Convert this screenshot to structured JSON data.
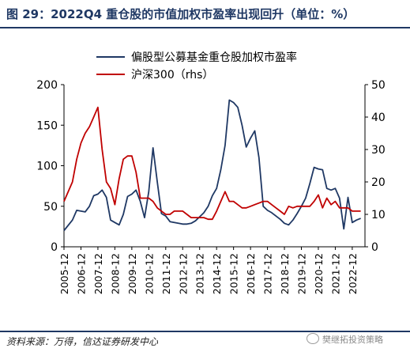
{
  "header": {
    "title": "图 29：2022Q4 重仓股的市值加权市盈率出现回升（单位：%）"
  },
  "footer": {
    "source": "资料来源：万得，信达证券研发中心",
    "watermark": "樊继拓投资策略"
  },
  "colors": {
    "series_pe": "#1f3864",
    "series_hs300": "#c00000",
    "title": "#1f3864",
    "axis": "#000000"
  },
  "chart_data": {
    "type": "line",
    "title": "",
    "xlabel": "",
    "ylabel": "",
    "legend_position": "top",
    "grid": false,
    "x_tick_labels": [
      "2005-12",
      "2006-12",
      "2007-12",
      "2008-12",
      "2009-12",
      "2010-12",
      "2011-12",
      "2012-12",
      "2013-12",
      "2014-12",
      "2015-12",
      "2016-12",
      "2017-12",
      "2018-12",
      "2019-12",
      "2020-12",
      "2021-12",
      "2022-12"
    ],
    "x_range": [
      2005.0,
      2022.75
    ],
    "y_left": {
      "ticks": [
        0,
        50,
        100,
        150,
        200
      ],
      "range": [
        0,
        200
      ]
    },
    "y_right": {
      "ticks": [
        0,
        10,
        20,
        30,
        40,
        50
      ],
      "range": [
        0,
        50
      ]
    },
    "series": [
      {
        "name": "偏股型公募基金重仓股加权市盈率",
        "axis": "left",
        "color": "#1f3864",
        "x": [
          2005.0,
          2005.5,
          2005.75,
          2006.0,
          2006.25,
          2006.5,
          2006.75,
          2007.0,
          2007.25,
          2007.5,
          2007.75,
          2008.0,
          2008.25,
          2008.5,
          2008.75,
          2009.0,
          2009.25,
          2009.5,
          2009.75,
          2010.0,
          2010.25,
          2010.5,
          2010.75,
          2011.0,
          2011.25,
          2011.5,
          2011.75,
          2012.0,
          2012.25,
          2012.5,
          2012.75,
          2013.0,
          2013.25,
          2013.5,
          2013.75,
          2014.0,
          2014.25,
          2014.5,
          2014.75,
          2015.0,
          2015.25,
          2015.5,
          2015.75,
          2016.0,
          2016.25,
          2016.5,
          2016.75,
          2017.0,
          2017.25,
          2017.5,
          2017.75,
          2018.0,
          2018.25,
          2018.5,
          2018.75,
          2019.0,
          2019.25,
          2019.5,
          2019.75,
          2020.0,
          2020.25,
          2020.5,
          2020.75,
          2021.0,
          2021.25,
          2021.5,
          2021.75,
          2022.0,
          2022.25,
          2022.5
        ],
        "y": [
          20,
          33,
          45,
          44,
          43,
          50,
          63,
          65,
          70,
          61,
          33,
          30,
          27,
          40,
          62,
          65,
          70,
          56,
          36,
          68,
          122,
          80,
          41,
          38,
          31,
          30,
          29,
          28,
          28,
          29,
          32,
          37,
          42,
          50,
          63,
          72,
          95,
          125,
          181,
          178,
          172,
          150,
          123,
          134,
          143,
          110,
          50,
          45,
          42,
          38,
          34,
          29,
          27,
          33,
          41,
          50,
          60,
          78,
          98,
          96,
          95,
          72,
          70,
          72,
          60,
          22,
          61,
          30,
          33,
          35
        ]
      },
      {
        "name": "沪深300（rhs）",
        "axis": "right",
        "color": "#c00000",
        "x": [
          2005.0,
          2005.5,
          2005.75,
          2006.0,
          2006.25,
          2006.5,
          2006.75,
          2007.0,
          2007.25,
          2007.5,
          2007.75,
          2008.0,
          2008.25,
          2008.5,
          2008.75,
          2009.0,
          2009.25,
          2009.5,
          2009.75,
          2010.0,
          2010.25,
          2010.5,
          2010.75,
          2011.0,
          2011.25,
          2011.5,
          2011.75,
          2012.0,
          2012.25,
          2012.5,
          2012.75,
          2013.0,
          2013.25,
          2013.5,
          2013.75,
          2014.0,
          2014.25,
          2014.5,
          2014.75,
          2015.0,
          2015.25,
          2015.5,
          2015.75,
          2016.0,
          2016.25,
          2016.5,
          2016.75,
          2017.0,
          2017.25,
          2017.5,
          2017.75,
          2018.0,
          2018.25,
          2018.5,
          2018.75,
          2019.0,
          2019.25,
          2019.5,
          2019.75,
          2020.0,
          2020.25,
          2020.5,
          2020.75,
          2021.0,
          2021.25,
          2021.5,
          2021.75,
          2022.0,
          2022.25,
          2022.5
        ],
        "y": [
          14,
          20,
          27,
          32,
          35,
          37,
          40,
          43,
          30,
          20,
          18,
          13,
          21,
          27,
          28,
          28,
          23,
          15,
          15,
          15,
          14,
          12,
          11,
          10,
          10,
          11,
          11,
          11,
          10,
          9,
          9,
          9,
          9,
          8.5,
          8.5,
          11,
          14,
          17,
          14,
          14,
          13,
          12,
          12,
          12.5,
          13,
          13.5,
          14,
          14,
          13,
          12,
          11,
          10,
          12.5,
          12,
          12.5,
          12.5,
          12.5,
          12.5,
          14,
          16,
          12,
          15,
          13,
          14,
          12,
          12,
          12,
          11,
          11,
          11
        ]
      }
    ]
  }
}
